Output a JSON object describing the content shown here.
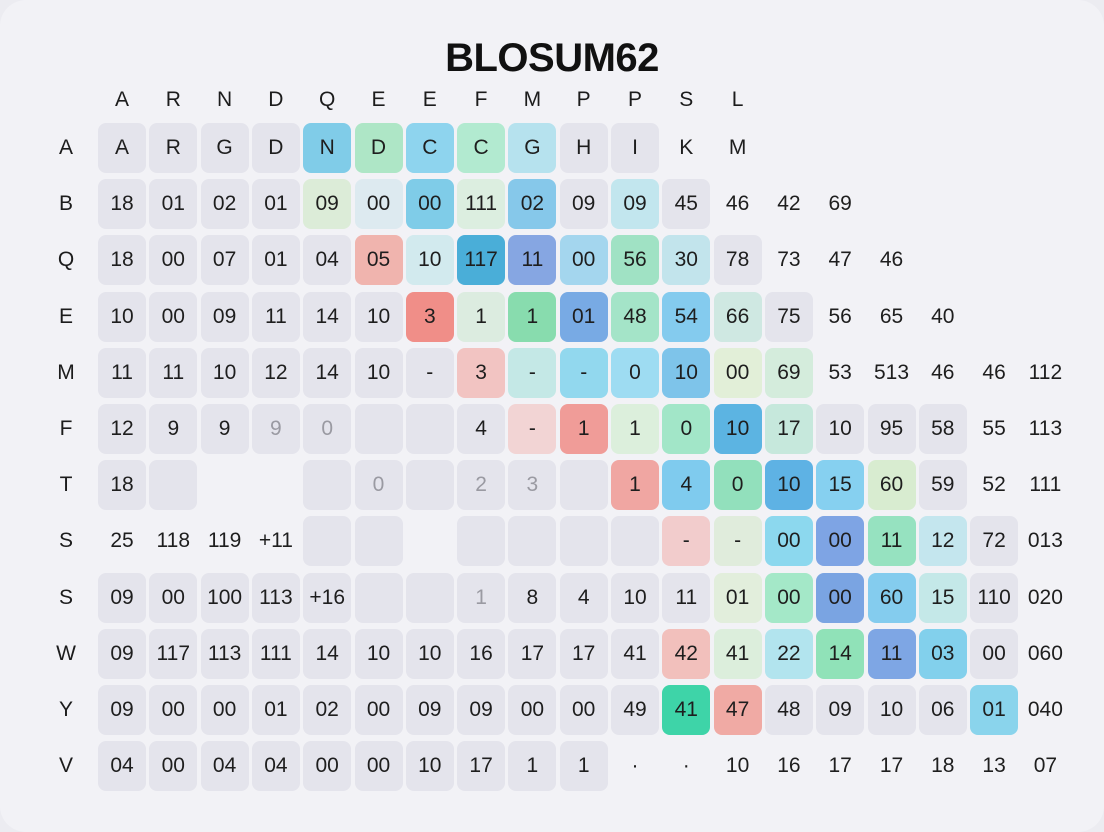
{
  "chart_data": {
    "type": "heatmap",
    "title": "BLOSUM62",
    "column_labels": [
      "A",
      "R",
      "N",
      "D",
      "Q",
      "E",
      "E",
      "F",
      "M",
      "P",
      "P",
      "S",
      "L"
    ],
    "row_labels": [
      "A",
      "B",
      "Q",
      "E",
      "M",
      "F",
      "T",
      "S",
      "S",
      "W",
      "Y",
      "V"
    ],
    "rows": [
      [
        "A",
        "R",
        "G",
        "D",
        "N",
        "D",
        "C",
        "C",
        "G",
        "H",
        "I",
        "K",
        "M"
      ],
      [
        "18",
        "01",
        "02",
        "01",
        "09",
        "00",
        "00",
        "111",
        "02",
        "09",
        "09",
        "45",
        "46",
        "42",
        "69"
      ],
      [
        "18",
        "00",
        "07",
        "01",
        "04",
        "05",
        "10",
        "117",
        "11",
        "00",
        "56",
        "30",
        "78",
        "73",
        "47",
        "46"
      ],
      [
        "10",
        "00",
        "09",
        "11",
        "14",
        "10",
        "3",
        "1",
        "1",
        "01",
        "48",
        "54",
        "66",
        "75",
        "56",
        "65",
        "40"
      ],
      [
        "11",
        "11",
        "10",
        "12",
        "14",
        "10",
        "-",
        "3",
        "-",
        "-",
        "0",
        "10",
        "00",
        "69",
        "53",
        "513",
        "46",
        "46",
        "112"
      ],
      [
        "12",
        "9",
        "9",
        "9",
        "0",
        "",
        "",
        "4",
        "-",
        "1",
        "1",
        "0",
        "10",
        "17",
        "10",
        "95",
        "58",
        "55",
        "113"
      ],
      [
        "18",
        "",
        "",
        "",
        "",
        "0",
        "",
        "2",
        "3",
        "",
        "1",
        "4",
        "0",
        "10",
        "15",
        "60",
        "59",
        "52",
        "111"
      ],
      [
        "25",
        "118",
        "119",
        "+11",
        "",
        "",
        "",
        "",
        "",
        "",
        "",
        "-",
        "-",
        "00",
        "00",
        "11",
        "12",
        "72",
        "013"
      ],
      [
        "09",
        "00",
        "100",
        "113",
        "+16",
        "",
        "",
        "1",
        "8",
        "4",
        "10",
        "11",
        "01",
        "00",
        "00",
        "60",
        "15",
        "110",
        "020"
      ],
      [
        "09",
        "117",
        "113",
        "111",
        "14",
        "10",
        "10",
        "16",
        "17",
        "17",
        "41",
        "42",
        "41",
        "22",
        "14",
        "11",
        "03",
        "00",
        "060"
      ],
      [
        "09",
        "00",
        "00",
        "01",
        "02",
        "00",
        "09",
        "09",
        "00",
        "00",
        "49",
        "41",
        "47",
        "48",
        "09",
        "10",
        "06",
        "01",
        "040"
      ],
      [
        "04",
        "00",
        "04",
        "04",
        "00",
        "00",
        "10",
        "17",
        "1",
        "1",
        "·",
        "·",
        "10",
        "16",
        "17",
        "17",
        "18",
        "13",
        "07"
      ]
    ],
    "cell_colors": [
      [
        "#e4e4ec",
        "#e4e4ec",
        "#e4e4ec",
        "#e4e4ec",
        "#80cce8",
        "#aee6c6",
        "#8ed4ee",
        "#b2ead0",
        "#b6e2ee",
        "#e4e4ec",
        "#e4e4ec",
        null,
        null
      ],
      [
        "#e4e4ec",
        "#e4e4ec",
        "#e4e4ec",
        "#e4e4ec",
        "#dcecd8",
        "#ddeaf0",
        "#7fcce8",
        "#dceee0",
        "#86c8ea",
        "#e4e4ec",
        "#c2e6ee",
        "#e4e4ec",
        null,
        null,
        null
      ],
      [
        "#e4e4ec",
        "#e4e4ec",
        "#e4e4ec",
        "#e4e4ec",
        "#e4e4ec",
        "#f0b4ae",
        "#d2eaee",
        "#4aaed8",
        "#86a6e2",
        "#a4d6ee",
        "#a0e2c4",
        "#c2e4ec",
        "#e4e4ec",
        null,
        null,
        null
      ],
      [
        "#e4e4ec",
        "#e4e4ec",
        "#e4e4ec",
        "#e4e4ec",
        "#e4e4ec",
        "#e4e4ec",
        "#f08e88",
        "#dcece0",
        "#88dcae",
        "#78aae4",
        "#a4e4c8",
        "#84cbee",
        "#cfe8e2",
        "#e4e4ec",
        null,
        null,
        null
      ],
      [
        "#e4e4ec",
        "#e4e4ec",
        "#e4e4ec",
        "#e4e4ec",
        "#e4e4ec",
        "#e4e4ec",
        "#e4e4ec",
        "#f2c4c2",
        "#c4e8e6",
        "#92d8ee",
        "#9edcf2",
        "#7ec4ea",
        "#e2efd8",
        "#d4ecdc",
        null,
        null,
        null,
        null,
        null
      ],
      [
        "#e4e4ec",
        "#e4e4ec",
        "#e4e4ec",
        "#e4e4ec",
        "#e4e4ec",
        "#e4e4ec",
        "#e4e4ec",
        "#e4e4ec",
        "#f2d4d4",
        "#f09c98",
        "#dcefdc",
        "#a2e6c8",
        "#5cb4e2",
        "#c6e8dc",
        "#e4e4ec",
        "#e4e4ec",
        "#e4e4ec",
        null,
        null
      ],
      [
        "#e4e4ec",
        "#e4e4ec",
        null,
        null,
        "#e4e4ec",
        "#e4e4ec",
        "#e4e4ec",
        "#e4e4ec",
        "#e4e4ec",
        "#e4e4ec",
        "#f0a6a2",
        "#7fcbee",
        "#92e0bc",
        "#5eb2e4",
        "#86d0f0",
        "#d8ecd0",
        "#e4e4ec",
        null,
        null
      ],
      [
        null,
        null,
        null,
        null,
        "#e4e4ec",
        "#e4e4ec",
        null,
        "#e4e4ec",
        "#e4e4ec",
        "#e4e4ec",
        "#e4e4ec",
        "#f2cccc",
        "#e0ecdc",
        "#8cd8ee",
        "#7ea4e4",
        "#96e2c0",
        "#c4e6ee",
        "#e4e4ec",
        null
      ],
      [
        "#e4e4ec",
        "#e4e4ec",
        "#e4e4ec",
        "#e4e4ec",
        "#e4e4ec",
        "#e4e4ec",
        "#e4e4ec",
        "#e4e4ec",
        "#e4e4ec",
        "#e4e4ec",
        "#e4e4ec",
        "#e4e4ec",
        "#e2eedc",
        "#a4e8c8",
        "#7aa4e2",
        "#84ccee",
        "#c4e8e8",
        "#e4e4ec",
        null
      ],
      [
        "#e4e4ec",
        "#e4e4ec",
        "#e4e4ec",
        "#e4e4ec",
        "#e4e4ec",
        "#e4e4ec",
        "#e4e4ec",
        "#e4e4ec",
        "#e4e4ec",
        "#e4e4ec",
        "#e4e4ec",
        "#f2c0bc",
        "#dceedc",
        "#b2e4ee",
        "#90e2b8",
        "#7ea6e4",
        "#82d0ec",
        "#e4e4ec",
        null
      ],
      [
        "#e4e4ec",
        "#e4e4ec",
        "#e4e4ec",
        "#e4e4ec",
        "#e4e4ec",
        "#e4e4ec",
        "#e4e4ec",
        "#e4e4ec",
        "#e4e4ec",
        "#e4e4ec",
        "#e4e4ec",
        "#3ed4a8",
        "#f0aaa4",
        "#e4e4ec",
        "#e4e4ec",
        "#e4e4ec",
        "#e4e4ec",
        "#8ad4ec",
        null
      ],
      [
        "#e4e4ec",
        "#e4e4ec",
        "#e4e4ec",
        "#e4e4ec",
        "#e4e4ec",
        "#e4e4ec",
        "#e4e4ec",
        "#e4e4ec",
        "#e4e4ec",
        "#e4e4ec",
        null,
        null,
        null,
        null,
        null,
        null,
        null,
        null,
        null
      ]
    ],
    "muted_cells": [
      [
        5,
        3
      ],
      [
        5,
        4
      ],
      [
        6,
        5
      ],
      [
        6,
        7
      ],
      [
        6,
        8
      ],
      [
        8,
        7
      ]
    ],
    "grid": false
  }
}
